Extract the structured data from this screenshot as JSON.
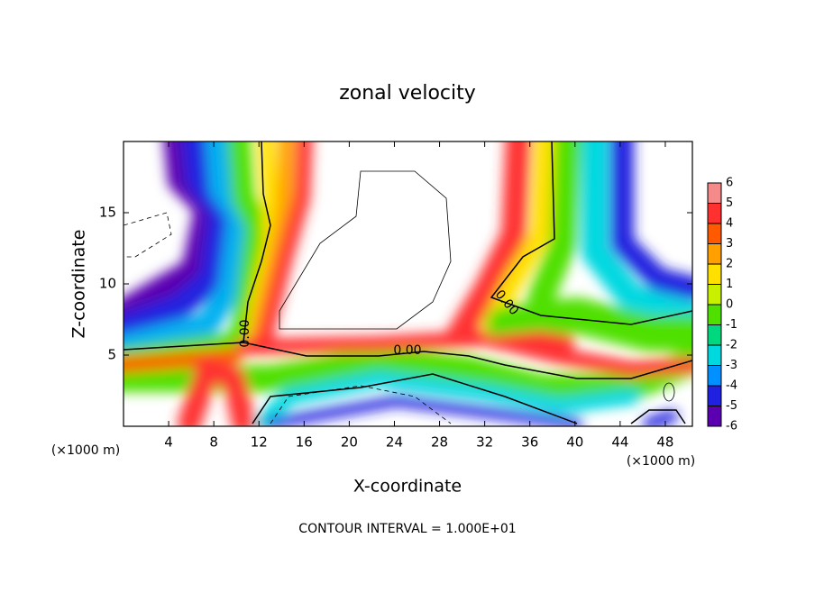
{
  "chart_data": {
    "type": "contour",
    "title": "zonal velocity",
    "xlabel": "X-coordinate",
    "ylabel": "Z-coordinate",
    "x_unit": "(×1000 m)",
    "y_unit": "(×1000 m)",
    "xlim": [
      0,
      50.4
    ],
    "ylim": [
      0,
      20
    ],
    "xticks": [
      4,
      8,
      12,
      16,
      20,
      24,
      28,
      32,
      36,
      40,
      44,
      48
    ],
    "yticks": [
      5,
      10,
      15
    ],
    "contour_labels": [
      "0.00",
      "0.00",
      "0.00"
    ],
    "footer": "CONTOUR INTERVAL = 1.000E+01",
    "colorbar": {
      "clim": [
        -6,
        6
      ],
      "ticks": [
        6,
        5,
        4,
        3,
        2,
        1,
        0,
        -1,
        -2,
        -3,
        -4,
        -5,
        -6
      ],
      "colors": [
        "#f48a8a",
        "#ff3030",
        "#ff5a00",
        "#ffa000",
        "#ffe000",
        "#c8f000",
        "#50e000",
        "#00d880",
        "#00d8e0",
        "#0090ff",
        "#2020e0",
        "#5a00b0"
      ]
    }
  }
}
